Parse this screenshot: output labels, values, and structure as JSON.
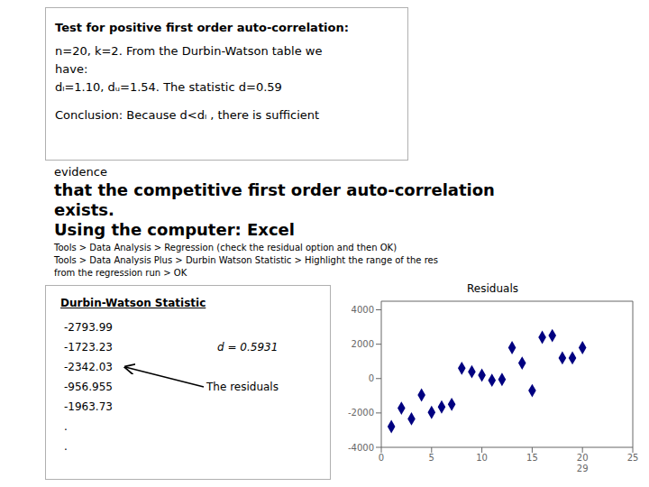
{
  "chart_data": {
    "type": "scatter",
    "title": "Residuals",
    "x": [
      1,
      2,
      3,
      4,
      5,
      6,
      7,
      8,
      9,
      10,
      11,
      12,
      13,
      14,
      15,
      16,
      17,
      18,
      19,
      20
    ],
    "values": [
      -2793.99,
      -1723.23,
      -2342.03,
      -956.955,
      -1963.73,
      -1650,
      -1500,
      600,
      400,
      200,
      -100,
      -50,
      1800,
      900,
      -700,
      2400,
      2500,
      1200,
      1200,
      1800
    ],
    "color": "#000080",
    "marker": "diamond",
    "xlim": [
      0,
      25
    ],
    "ylim": [
      -4000,
      4500
    ],
    "xticks": [
      0,
      5,
      10,
      15,
      20,
      25
    ],
    "yticks": [
      -4000,
      -2000,
      0,
      2000,
      4000
    ],
    "annotations": [
      {
        "text": "Test for positive first order auto-correlation:"
      },
      {
        "text": "n=20, k=2.  From the Durbin-Watson table we"
      },
      {
        "text": "have:"
      },
      {
        "text": "dₗ=1.10, dᵤ=1.54.  The statistic d=0.59"
      },
      {
        "text": "Conclusion: Because d<dₗ , there is sufficient"
      },
      {
        "text": "evidence"
      },
      {
        "text": "that the competitive first order auto-correlation"
      },
      {
        "text": "exists."
      },
      {
        "text": "Using the computer:  Excel"
      },
      {
        "text": "Tools > Data Analysis > Regression (check the residual option and then OK)"
      },
      {
        "text": "Tools > Data Analysis Plus > Durbin Watson Statistic > Highlight the range of the res"
      },
      {
        "text": "from the regression run > OK"
      },
      {
        "text": "Durbin-Watson Statistic"
      },
      {
        "text": "-2793.99"
      },
      {
        "text": "-1723.23"
      },
      {
        "text": "-2342.03"
      },
      {
        "text": "-956.955"
      },
      {
        "text": "-1963.73"
      },
      {
        "text": "."
      },
      {
        "text": "."
      },
      {
        "text": "d = 0.5931"
      },
      {
        "text": "The residuals"
      },
      {
        "text": "29",
        "x": 20
      }
    ]
  }
}
